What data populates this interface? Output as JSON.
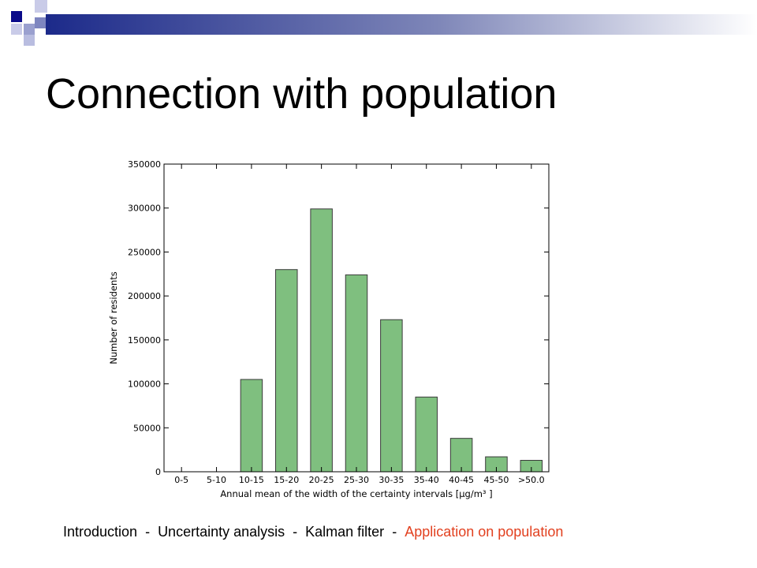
{
  "slide": {
    "title": "Connection with population"
  },
  "footer": {
    "items": [
      "Introduction",
      "Uncertainty analysis",
      "Kalman filter",
      "Application on population"
    ],
    "separator": "-",
    "active_index": 3,
    "active_color": "#e2401f"
  },
  "colors": {
    "bar_fill": "#7fbf7f",
    "bar_stroke": "#3a3a3a"
  },
  "chart_data": {
    "type": "bar",
    "categories": [
      "0-5",
      "5-10",
      "10-15",
      "15-20",
      "20-25",
      "25-30",
      "30-35",
      "35-40",
      "40-45",
      "45-50",
      ">50.0"
    ],
    "values": [
      0,
      0,
      105000,
      230000,
      299000,
      224000,
      173000,
      85000,
      38000,
      17000,
      13000
    ],
    "xlabel": "Annual mean of the width of the certainty intervals [μg/m³ ]",
    "ylabel": "Number of residents",
    "ylim": [
      0,
      350000
    ],
    "yticks": [
      0,
      50000,
      100000,
      150000,
      200000,
      250000,
      300000,
      350000
    ],
    "grid": false
  }
}
